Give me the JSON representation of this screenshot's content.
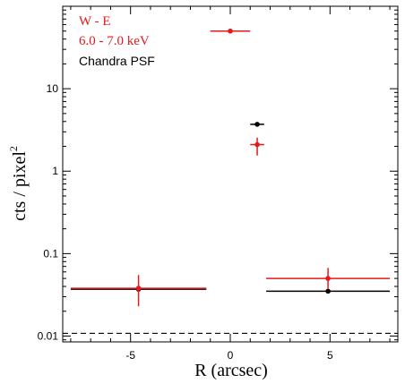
{
  "chart_data": {
    "type": "scatter",
    "xlabel": "R (arcsec)",
    "ylabel": "cts / pixel",
    "ylabel_superscript": "2",
    "xlim": [
      -8.4,
      8.4
    ],
    "ylim": [
      0.0085,
      100
    ],
    "yscale": "log",
    "grid": false,
    "x_ticks": [
      {
        "value": -5,
        "label": "-5"
      },
      {
        "value": 0,
        "label": "0"
      },
      {
        "value": 5,
        "label": "5"
      }
    ],
    "y_ticks": [
      {
        "value": 0.01,
        "label": "0.01"
      },
      {
        "value": 0.1,
        "label": "0.1"
      },
      {
        "value": 1,
        "label": "1"
      },
      {
        "value": 10,
        "label": "10"
      }
    ],
    "legend": {
      "placement": "top-left",
      "lines": [
        {
          "text": "W - E",
          "color": "#e31a1c"
        },
        {
          "text": "6.0 - 7.0 keV",
          "color": "#e31a1c"
        },
        {
          "text": "Chandra PSF",
          "color": "#000000"
        }
      ]
    },
    "series": [
      {
        "name": "Chandra PSF",
        "color": "#000000",
        "points": [
          {
            "x": -4.6,
            "y": 0.037,
            "xerr": 3.4,
            "yerr_low": 0,
            "yerr_high": 0
          },
          {
            "x": 1.35,
            "y": 3.7,
            "xerr": 0.35,
            "yerr_low": 0,
            "yerr_high": 0
          },
          {
            "x": 4.9,
            "y": 0.035,
            "xerr": 3.1,
            "yerr_low": 0,
            "yerr_high": 0
          }
        ]
      },
      {
        "name": "W - E",
        "color": "#e31a1c",
        "points": [
          {
            "x": -4.6,
            "y": 0.038,
            "xerr": 3.4,
            "yerr_low": 0.015,
            "yerr_high": 0.017
          },
          {
            "x": 0.0,
            "y": 50,
            "xerr": 1.0,
            "yerr_low": 0,
            "yerr_high": 0
          },
          {
            "x": 1.35,
            "y": 2.1,
            "xerr": 0.35,
            "yerr_low": 0.55,
            "yerr_high": 0.45
          },
          {
            "x": 4.9,
            "y": 0.05,
            "xerr": 3.1,
            "yerr_low": 0.013,
            "yerr_high": 0.017
          }
        ]
      }
    ],
    "reference_lines": [
      {
        "orientation": "horizontal",
        "y": 0.0108,
        "style": "dashed",
        "color": "#000000"
      }
    ]
  }
}
